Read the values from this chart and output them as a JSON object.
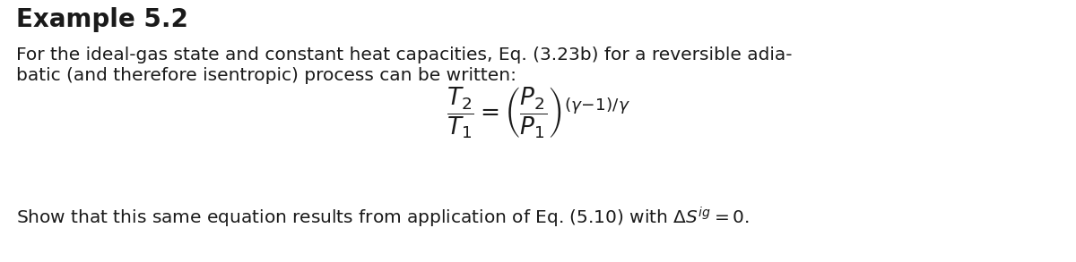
{
  "title": "Example 5.2",
  "line1": "For the ideal-gas state and constant heat capacities, Eq. (3.23b) for a reversible adia-",
  "line2": "batic (and therefore isentropic) process can be written:",
  "line3": "Show that this same equation results from application of Eq. (5.10) with ΔS",
  "line3_sup": "ig",
  "line3_end": " = 0.",
  "bg_color": "#ffffff",
  "text_color": "#1a1a1a",
  "title_fontsize": 20,
  "body_fontsize": 14.5,
  "eq_fontsize": 19
}
